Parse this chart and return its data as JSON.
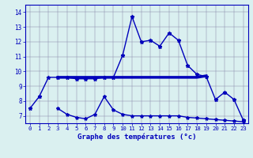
{
  "xlabel": "Graphe des températures (°c)",
  "bg_color": "#daf0f0",
  "line_color": "#0000bb",
  "x_hours": [
    0,
    1,
    2,
    3,
    4,
    5,
    6,
    7,
    8,
    9,
    10,
    11,
    12,
    13,
    14,
    15,
    16,
    17,
    18,
    19,
    20,
    21,
    22,
    23
  ],
  "temp_curve": [
    7.5,
    8.3,
    9.6,
    9.6,
    9.6,
    9.5,
    9.5,
    9.5,
    9.6,
    9.6,
    11.1,
    13.7,
    12.0,
    12.1,
    11.7,
    12.6,
    12.1,
    10.4,
    9.8,
    9.65,
    8.1,
    8.6,
    8.1,
    6.7
  ],
  "upper_ref_x": [
    3,
    4,
    5,
    6,
    7,
    8,
    9,
    10,
    11,
    12,
    13,
    14,
    15,
    16,
    17,
    18,
    19
  ],
  "upper_ref_y": [
    9.6,
    9.6,
    9.6,
    9.6,
    9.6,
    9.6,
    9.6,
    9.6,
    9.6,
    9.6,
    9.6,
    9.6,
    9.6,
    9.6,
    9.6,
    9.6,
    9.7
  ],
  "lower_ref_x": [
    3,
    4,
    5,
    6,
    7,
    8,
    9,
    10,
    11,
    12,
    13,
    14,
    15,
    16,
    17,
    18,
    19,
    20,
    21,
    22,
    23
  ],
  "lower_ref_y": [
    7.5,
    7.1,
    6.9,
    6.8,
    7.1,
    8.3,
    7.4,
    7.1,
    7.0,
    7.0,
    7.0,
    7.0,
    7.0,
    7.0,
    6.9,
    6.85,
    6.8,
    6.75,
    6.7,
    6.65,
    6.6
  ],
  "ylim": [
    6.5,
    14.5
  ],
  "xlim": [
    -0.5,
    23.5
  ],
  "yticks": [
    7,
    8,
    9,
    10,
    11,
    12,
    13,
    14
  ]
}
